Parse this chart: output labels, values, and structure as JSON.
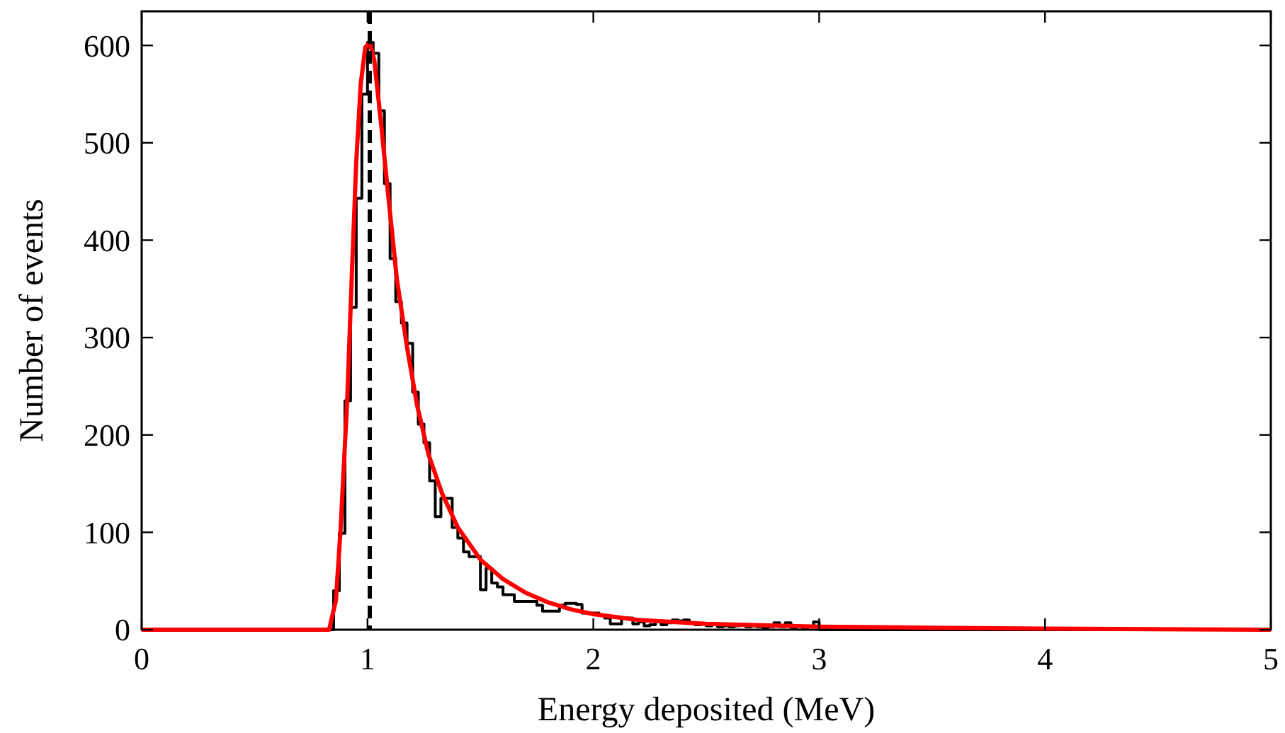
{
  "chart_data": {
    "type": "step",
    "xlabel": "Energy deposited (MeV)",
    "ylabel": "Number of events",
    "xlim": [
      0,
      5
    ],
    "ylim": [
      0,
      635
    ],
    "xticks": [
      0,
      1,
      2,
      3,
      4,
      5
    ],
    "yticks": [
      0,
      100,
      200,
      300,
      400,
      500,
      600
    ],
    "grid": false,
    "series": [
      {
        "color": "#000000",
        "x": [
          0,
          0.8,
          0.825,
          0.85,
          0.875,
          0.9,
          0.925,
          0.95,
          0.975,
          1.0,
          1.025,
          1.05,
          1.075,
          1.1,
          1.125,
          1.15,
          1.175,
          1.2,
          1.225,
          1.25,
          1.275,
          1.3,
          1.325,
          1.35,
          1.375,
          1.4,
          1.425,
          1.45,
          1.475,
          1.5,
          1.525,
          1.55,
          1.575,
          1.6,
          1.625,
          1.65,
          1.675,
          1.7,
          1.725,
          1.75,
          1.775,
          1.8,
          1.825,
          1.85,
          1.875,
          1.9,
          1.925,
          1.95,
          1.975,
          2.0,
          2.025,
          2.05,
          2.075,
          2.1,
          2.125,
          2.15,
          2.175,
          2.2,
          2.225,
          2.25,
          2.275,
          2.3,
          2.325,
          2.35,
          2.375,
          2.4,
          2.425,
          2.45,
          2.475,
          2.5,
          2.525,
          2.55,
          2.575,
          2.6,
          2.625,
          2.65,
          2.675,
          2.7,
          2.725,
          2.75,
          2.775,
          2.8,
          2.825,
          2.85,
          2.875,
          2.9,
          2.925,
          2.95,
          2.975,
          3.0,
          5
        ],
        "values": [
          0,
          0,
          0,
          40,
          99,
          235,
          331,
          443,
          550,
          603,
          592,
          533,
          458,
          381,
          337,
          315,
          294,
          244,
          211,
          192,
          153,
          116,
          135,
          135,
          105,
          94,
          80,
          75,
          75,
          41,
          63,
          48,
          44,
          36,
          36,
          29,
          29,
          29,
          29,
          25,
          19,
          19,
          19,
          25,
          27,
          27,
          26,
          17,
          17,
          17,
          15,
          12,
          6,
          6,
          12,
          12,
          6,
          8,
          4,
          5,
          9,
          5,
          7,
          10,
          9,
          10,
          7,
          5,
          6,
          4,
          6,
          3,
          4,
          3,
          4,
          5,
          3,
          4,
          3,
          2,
          3,
          7,
          3,
          7,
          2,
          3,
          2,
          3,
          8,
          0,
          0
        ]
      },
      {
        "type": "line",
        "color": "#ff0000",
        "line_style": "solid",
        "x": [
          0,
          0.83,
          0.86,
          0.88,
          0.91,
          0.93,
          0.95,
          0.97,
          0.99,
          1.01,
          1.03,
          1.06,
          1.09,
          1.13,
          1.175,
          1.22,
          1.27,
          1.33,
          1.4,
          1.5,
          1.6,
          1.7,
          1.8,
          1.9,
          2.0,
          2.2,
          2.5,
          3,
          3.5,
          4,
          5
        ],
        "values": [
          0,
          0,
          30,
          100,
          235,
          360,
          480,
          560,
          598,
          603,
          585,
          520,
          450,
          360,
          290,
          230,
          180,
          140,
          105,
          72,
          52,
          38,
          28,
          21,
          16,
          10,
          6,
          3,
          2,
          1,
          0
        ]
      }
    ],
    "ref_lines": [
      {
        "axis": "x",
        "value": 1.01,
        "color": "#000000",
        "line_style": "dashed"
      }
    ]
  }
}
